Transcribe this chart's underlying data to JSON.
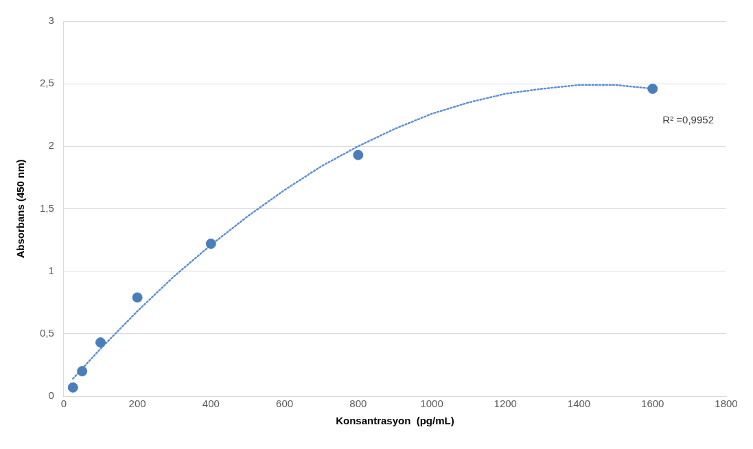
{
  "chart_data": {
    "type": "scatter",
    "xlabel": "Konsantrasyon  (pg/mL)",
    "ylabel": "Absorbans (450 nm)",
    "xlim": [
      0,
      1800
    ],
    "xticks": [
      0,
      200,
      400,
      600,
      800,
      1000,
      1200,
      1400,
      1600,
      1800
    ],
    "ylim": [
      0,
      3
    ],
    "yticks": [
      0,
      {
        "value": 0.5,
        "label": "0,5"
      },
      1,
      {
        "value": 1.5,
        "label": "1,5"
      },
      2,
      {
        "value": 2.5,
        "label": "2,5"
      },
      3
    ],
    "grid": "y",
    "legend": false,
    "marker": "circle",
    "annotations": [
      "R² =0,9952"
    ],
    "series": [
      {
        "type": "scatter",
        "color": "#4a7ebb",
        "x": [
          25,
          50,
          100,
          200,
          400,
          800,
          1600
        ],
        "values": [
          0.07,
          0.2,
          0.43,
          0.79,
          1.22,
          1.93,
          2.46
        ]
      },
      {
        "type": "line",
        "color": "#5b8fd6",
        "line_style": "dotted",
        "marker": "none",
        "x": [
          25,
          100,
          200,
          300,
          400,
          500,
          600,
          700,
          800,
          900,
          1000,
          1100,
          1200,
          1300,
          1400,
          1450,
          1500,
          1600
        ],
        "values": [
          0.14,
          0.38,
          0.68,
          0.96,
          1.21,
          1.44,
          1.65,
          1.84,
          2.0,
          2.14,
          2.26,
          2.35,
          2.42,
          2.46,
          2.49,
          2.49,
          2.49,
          2.46
        ]
      }
    ]
  }
}
